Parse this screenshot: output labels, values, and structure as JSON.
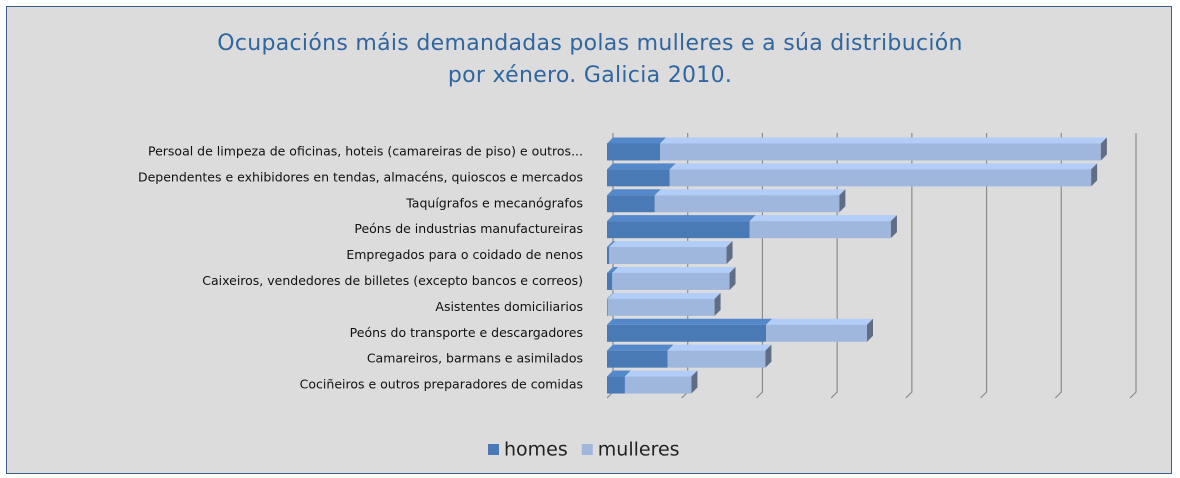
{
  "chart_data": {
    "type": "stacked_barh",
    "title": "Ocupacións máis demandadas polas mulleres e a súa distribución por xénero. Galicia 2010.",
    "categories": [
      "Persoal de limpeza de oficinas, hoteis (camareiras de piso) e outros...",
      "Dependentes e exhibidores en tendas, almacéns, quioscos e mercados",
      "Taquígrafos e mecanógrafos",
      "Peóns de industrias manufactureiras",
      "Empregados para o coidado de nenos",
      "Caixeiros, vendedores de billetes (excepto bancos e correos)",
      "Asistentes domiciliarios",
      "Peóns do transporte e descargadores",
      "Camareiros, barmans e asimilados",
      "Cociñeiros e outros preparadores de comidas"
    ],
    "series": [
      {
        "name": "homes",
        "color": "#4a7ab5",
        "values": [
          71,
          84,
          64,
          191,
          3,
          7,
          1,
          213,
          81,
          24
        ]
      },
      {
        "name": "mulleres",
        "color": "#9fb7dd",
        "values": [
          590,
          564,
          247,
          189,
          157,
          157,
          143,
          135,
          131,
          89
        ]
      }
    ],
    "xlim": [
      0,
      700
    ],
    "xticks": [
      0,
      100,
      200,
      300,
      400,
      500,
      600,
      700
    ],
    "grid": true,
    "legend": "bottom"
  }
}
